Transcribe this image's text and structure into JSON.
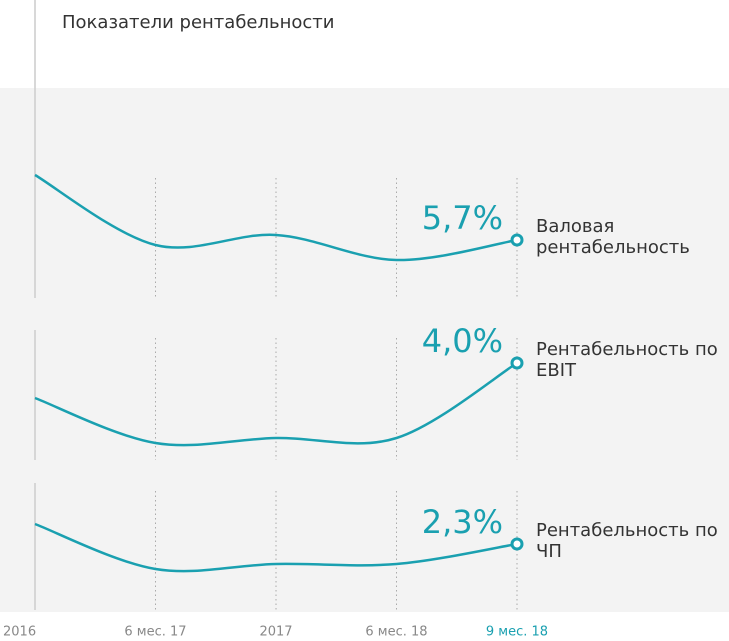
{
  "chart_data": {
    "type": "line",
    "title": "Показатели рентабельности",
    "categories": [
      "2016",
      "6 мес. 17",
      "2017",
      "6 мес. 18",
      "9 мес. 18"
    ],
    "highlight_category_color": "#1aa0b0",
    "series": [
      {
        "name": "Валовая рентабельность",
        "color": "#1aa0b0",
        "values": [
          7.0,
          5.6,
          5.8,
          5.3,
          5.7
        ],
        "value_labels": [
          null,
          null,
          null,
          null,
          "5,7%"
        ]
      },
      {
        "name": "Рентабельность по EBIT",
        "color": "#1aa0b0",
        "values": [
          3.3,
          2.4,
          2.5,
          2.5,
          4.0
        ],
        "value_labels": [
          null,
          null,
          null,
          null,
          "4,0%"
        ]
      },
      {
        "name": "Рентабельность по ЧП",
        "color": "#1aa0b0",
        "values": [
          2.7,
          1.8,
          1.9,
          1.9,
          2.3
        ],
        "value_labels": [
          null,
          null,
          null,
          null,
          "2,3%"
        ]
      }
    ]
  }
}
